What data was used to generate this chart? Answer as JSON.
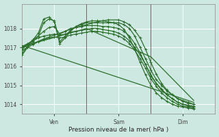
{
  "bg_color": "#cce8e0",
  "grid_color": "#ffffff",
  "line_color": "#2d6e2d",
  "xlabel": "Pression niveau de la mer( hPa )",
  "ylim": [
    1013.5,
    1019.3
  ],
  "xlim": [
    0,
    72
  ],
  "yticks": [
    1014,
    1015,
    1016,
    1017,
    1018
  ],
  "xtick_positions": [
    12,
    36,
    60
  ],
  "xtick_labels": [
    "Ven",
    "Sam",
    "Dim"
  ],
  "vlines": [
    24,
    48,
    72
  ],
  "series": [
    {
      "x": [
        0,
        2,
        4,
        6,
        8,
        10,
        12,
        14,
        16,
        18,
        20,
        22,
        24,
        26,
        28,
        30,
        32,
        34,
        36,
        38,
        40,
        42,
        44,
        46,
        48,
        50,
        52,
        54,
        56,
        58,
        60,
        62,
        64
      ],
      "y": [
        1016.6,
        1017.0,
        1017.3,
        1017.6,
        1018.3,
        1018.5,
        1018.4,
        1017.3,
        1017.6,
        1017.9,
        1018.1,
        1018.2,
        1018.3,
        1018.3,
        1018.3,
        1018.3,
        1018.3,
        1018.3,
        1018.3,
        1018.2,
        1018.0,
        1017.6,
        1017.0,
        1016.4,
        1015.8,
        1015.3,
        1015.0,
        1014.7,
        1014.5,
        1014.3,
        1014.2,
        1014.1,
        1014.0
      ],
      "marker": "+",
      "lw": 0.9
    },
    {
      "x": [
        0,
        2,
        4,
        6,
        8,
        10,
        12,
        14,
        16,
        18,
        20,
        22,
        24,
        26,
        28,
        30,
        32,
        34,
        36,
        38,
        40,
        42,
        44,
        46,
        48,
        50,
        52,
        54,
        56,
        58,
        60,
        62,
        64
      ],
      "y": [
        1016.9,
        1017.15,
        1017.4,
        1017.6,
        1017.85,
        1018.05,
        1018.1,
        1017.7,
        1017.85,
        1018.0,
        1018.05,
        1018.1,
        1018.15,
        1018.15,
        1018.15,
        1018.1,
        1018.1,
        1018.05,
        1018.0,
        1017.85,
        1017.6,
        1017.2,
        1016.7,
        1016.1,
        1015.5,
        1015.1,
        1014.8,
        1014.5,
        1014.3,
        1014.1,
        1014.0,
        1013.95,
        1013.9
      ],
      "marker": "+",
      "lw": 0.9
    },
    {
      "x": [
        0,
        2,
        4,
        6,
        8,
        10,
        12,
        14,
        16,
        18,
        20,
        22,
        24,
        26,
        28,
        30,
        32,
        34,
        36,
        38,
        40,
        42,
        44,
        46,
        48,
        50,
        52,
        54,
        56,
        58,
        60,
        62,
        64
      ],
      "y": [
        1017.05,
        1017.2,
        1017.35,
        1017.5,
        1017.6,
        1017.65,
        1017.7,
        1017.65,
        1017.7,
        1017.8,
        1017.85,
        1017.9,
        1017.95,
        1018.0,
        1018.0,
        1017.95,
        1017.9,
        1017.85,
        1017.75,
        1017.6,
        1017.35,
        1017.0,
        1016.6,
        1016.1,
        1015.55,
        1015.1,
        1014.75,
        1014.5,
        1014.3,
        1014.1,
        1014.0,
        1013.9,
        1013.85
      ],
      "marker": "+",
      "lw": 0.9
    },
    {
      "x": [
        0,
        2,
        4,
        6,
        8,
        10,
        12,
        14,
        16,
        18,
        20,
        22,
        24,
        26,
        28,
        30,
        32,
        34,
        36,
        38,
        40,
        42,
        44,
        46,
        48,
        50,
        52,
        54,
        56,
        58,
        60,
        62,
        64
      ],
      "y": [
        1016.85,
        1017.0,
        1017.15,
        1017.3,
        1017.4,
        1017.5,
        1017.55,
        1017.5,
        1017.55,
        1017.65,
        1017.7,
        1017.75,
        1017.8,
        1017.85,
        1017.85,
        1017.8,
        1017.75,
        1017.7,
        1017.6,
        1017.45,
        1017.2,
        1016.85,
        1016.4,
        1015.9,
        1015.35,
        1014.95,
        1014.6,
        1014.35,
        1014.15,
        1014.0,
        1013.9,
        1013.85,
        1013.8
      ],
      "marker": "+",
      "lw": 0.9
    },
    {
      "x": [
        0,
        4,
        8,
        12,
        16,
        20,
        24,
        28,
        32,
        36,
        38,
        40,
        42,
        44,
        46,
        48,
        50,
        52,
        54,
        56,
        58,
        60,
        62,
        64
      ],
      "y": [
        1017.0,
        1017.2,
        1017.45,
        1017.65,
        1017.85,
        1018.05,
        1018.2,
        1018.35,
        1018.45,
        1018.45,
        1018.35,
        1018.2,
        1017.9,
        1017.5,
        1016.9,
        1016.2,
        1015.6,
        1015.1,
        1014.75,
        1014.5,
        1014.3,
        1014.15,
        1014.05,
        1014.0
      ],
      "marker": "+",
      "lw": 0.9
    },
    {
      "x": [
        0,
        64
      ],
      "y": [
        1017.1,
        1014.1
      ],
      "marker": null,
      "lw": 0.9
    },
    {
      "x": [
        0,
        24,
        48,
        64
      ],
      "y": [
        1017.05,
        1018.0,
        1016.5,
        1014.2
      ],
      "marker": null,
      "lw": 0.9
    },
    {
      "x": [
        0,
        2,
        4,
        6,
        8,
        10,
        12,
        14,
        16,
        18,
        20,
        22,
        24,
        26,
        28,
        30,
        32,
        34,
        36,
        38,
        40,
        42,
        44,
        46,
        48,
        50,
        52,
        54,
        56,
        58,
        60,
        62,
        64
      ],
      "y": [
        1016.7,
        1017.05,
        1017.4,
        1017.75,
        1018.5,
        1018.6,
        1018.35,
        1017.2,
        1017.5,
        1017.85,
        1018.1,
        1018.25,
        1018.35,
        1018.4,
        1018.4,
        1018.4,
        1018.35,
        1018.3,
        1018.2,
        1017.95,
        1017.5,
        1016.9,
        1016.2,
        1015.55,
        1015.0,
        1014.6,
        1014.35,
        1014.15,
        1014.0,
        1013.9,
        1013.85,
        1013.8,
        1013.75
      ],
      "marker": "+",
      "lw": 0.9
    }
  ]
}
